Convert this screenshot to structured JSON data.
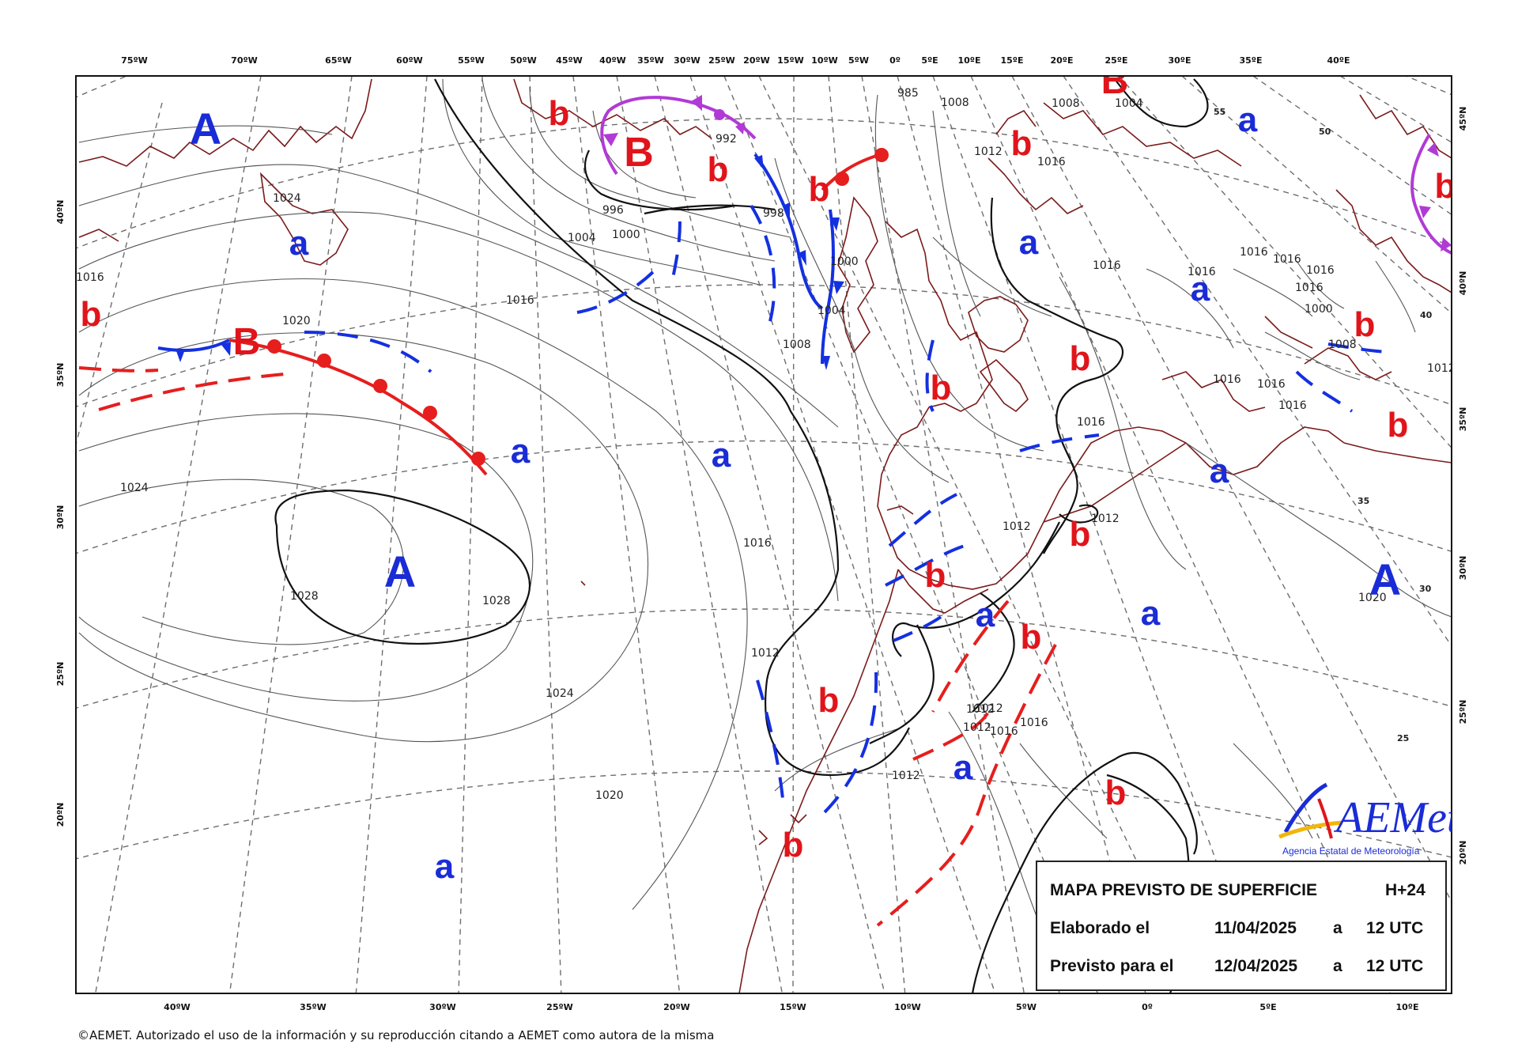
{
  "map": {
    "top_lon_labels": [
      "75ºW",
      "70ºW",
      "65ºW",
      "60ºW",
      "55ºW",
      "50ºW",
      "45ºW",
      "40ºW",
      "35ºW",
      "30ºW",
      "25ºW",
      "20ºW",
      "15ºW",
      "10ºW",
      "5ºW",
      "0º",
      "5ºE",
      "10ºE",
      "15ºE",
      "20ºE",
      "25ºE",
      "30ºE",
      "35ºE",
      "40ºE"
    ],
    "bottom_lon_labels": [
      "40ºW",
      "35ºW",
      "30ºW",
      "25ºW",
      "20ºW",
      "15ºW",
      "10ºW",
      "5ºW",
      "0º",
      "5ºE",
      "10ºE"
    ],
    "left_lat_labels": [
      "40ºN",
      "35ºN",
      "30ºN",
      "25ºN",
      "20ºN"
    ],
    "right_lat_labels": [
      "45ºN",
      "40ºN",
      "35ºN",
      "30ºN",
      "25ºN",
      "20ºN"
    ],
    "inner_lat_marks": [
      "55",
      "50",
      "40",
      "35",
      "30",
      "25"
    ],
    "isobar_labels": [
      "1024",
      "1016",
      "1020",
      "1024",
      "1028",
      "1028",
      "1024",
      "1020",
      "1016",
      "1012",
      "1012",
      "1012",
      "1012",
      "1016",
      "1016",
      "1008",
      "1004",
      "1000",
      "996",
      "992",
      "998",
      "1000",
      "1004",
      "1008",
      "1016",
      "1016",
      "1016",
      "1016",
      "1016",
      "1016",
      "1016",
      "1016",
      "1016",
      "1016",
      "1020",
      "1012",
      "1012",
      "1016",
      "1016",
      "1012",
      "1012",
      "1012",
      "985",
      "1008",
      "1004",
      "1000",
      "1008"
    ],
    "pressure_centers": [
      "A",
      "a",
      "b",
      "B",
      "a",
      "A",
      "a",
      "a",
      "a",
      "b",
      "B",
      "b",
      "b",
      "b",
      "b",
      "b",
      "b",
      "a",
      "a",
      "a",
      "b",
      "b",
      "b",
      "a",
      "b",
      "a",
      "a",
      "b",
      "a",
      "b",
      "b",
      "a",
      "b",
      "b",
      "A",
      "B",
      "b"
    ]
  },
  "colors": {
    "high": "#1a2cd6",
    "low": "#e0151b",
    "cold_front": "#1430e0",
    "warm_front": "#e61e1e",
    "occluded_front": "#b13ad6",
    "coast": "#7a1a1a",
    "grid": "#6e6e6e"
  },
  "legend": {
    "title": "MAPA PREVISTO DE SUPERFICIE",
    "lead": "H+24",
    "row2_label": "Elaborado el",
    "row2_date": "11/04/2025",
    "row2_a": "a",
    "row2_time": "12 UTC",
    "row3_label": "Previsto para el",
    "row3_date": "12/04/2025",
    "row3_a": "a",
    "row3_time": "12 UTC"
  },
  "logo": {
    "name": "AEMet",
    "subtitle": "Agencia Estatal de Meteorología"
  },
  "copyright": "©AEMET. Autorizado el uso de la información y su reproducción citando a AEMET como autora de la misma"
}
